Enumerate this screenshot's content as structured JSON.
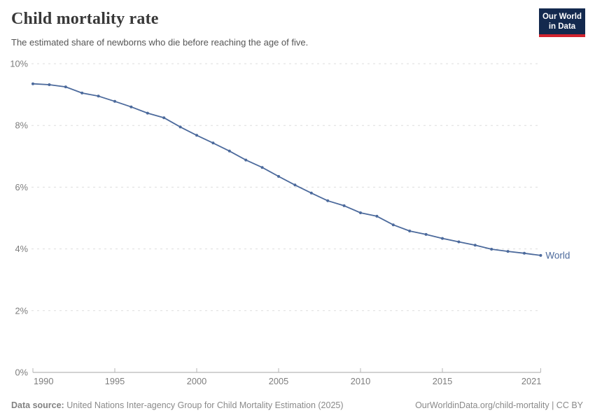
{
  "header": {
    "title": "Child mortality rate",
    "subtitle": "The estimated share of newborns who die before reaching the age of five."
  },
  "logo": {
    "line1": "Our World",
    "line2": "in Data",
    "bg_color": "#13294E",
    "accent_color": "#D2232E"
  },
  "chart_data": {
    "type": "line",
    "title": "Child mortality rate",
    "unit": "%",
    "ylim": [
      0,
      10
    ],
    "yticks": [
      0,
      2,
      4,
      6,
      8,
      10
    ],
    "xticks": [
      1990,
      1995,
      2000,
      2005,
      2010,
      2015,
      2021
    ],
    "grid": "horizontal-dashed",
    "legend": "end-of-line-label",
    "x": [
      1990,
      1991,
      1992,
      1993,
      1994,
      1995,
      1996,
      1997,
      1998,
      1999,
      2000,
      2001,
      2002,
      2003,
      2004,
      2005,
      2006,
      2007,
      2008,
      2009,
      2010,
      2011,
      2012,
      2013,
      2014,
      2015,
      2016,
      2017,
      2018,
      2019,
      2020,
      2021
    ],
    "series": [
      {
        "name": "World",
        "color": "#4C6A9C",
        "values": [
          9.35,
          9.32,
          9.25,
          9.05,
          8.95,
          8.78,
          8.6,
          8.4,
          8.25,
          7.95,
          7.68,
          7.43,
          7.17,
          6.88,
          6.64,
          6.35,
          6.07,
          5.81,
          5.56,
          5.4,
          5.17,
          5.06,
          4.78,
          4.58,
          4.47,
          4.34,
          4.23,
          4.12,
          3.99,
          3.92,
          3.86,
          3.79
        ]
      }
    ]
  },
  "footer": {
    "datasource_label": "Data source:",
    "datasource_text": "United Nations Inter-agency Group for Child Mortality Estimation (2025)",
    "link_text": "OurWorldinData.org/child-mortality",
    "separator": "|",
    "license_text": "CC BY"
  }
}
